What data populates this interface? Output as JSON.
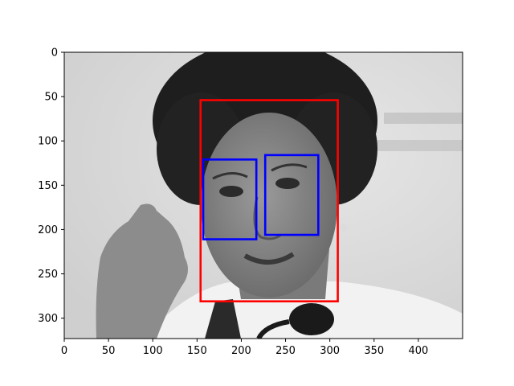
{
  "chart_data": {
    "type": "image_with_bounding_boxes",
    "title": "",
    "xlabel": "",
    "ylabel": "",
    "image": {
      "description": "grayscale photo of a woman's face with a microphone",
      "width": 450,
      "height": 323
    },
    "x_axis": {
      "range": [
        0,
        450
      ],
      "ticks": [
        0,
        50,
        100,
        150,
        200,
        250,
        300,
        350,
        400
      ]
    },
    "y_axis": {
      "range": [
        0,
        323
      ],
      "inverted": true,
      "ticks": [
        0,
        50,
        100,
        150,
        200,
        250,
        300
      ]
    },
    "boxes": [
      {
        "label": "face",
        "color": "#ff0000",
        "x1": 154,
        "y1": 54,
        "x2": 309,
        "y2": 281
      },
      {
        "label": "eye",
        "color": "#0000ff",
        "x1": 157,
        "y1": 121,
        "x2": 217,
        "y2": 211
      },
      {
        "label": "eye",
        "color": "#0000ff",
        "x1": 227,
        "y1": 116,
        "x2": 287,
        "y2": 206
      }
    ]
  }
}
